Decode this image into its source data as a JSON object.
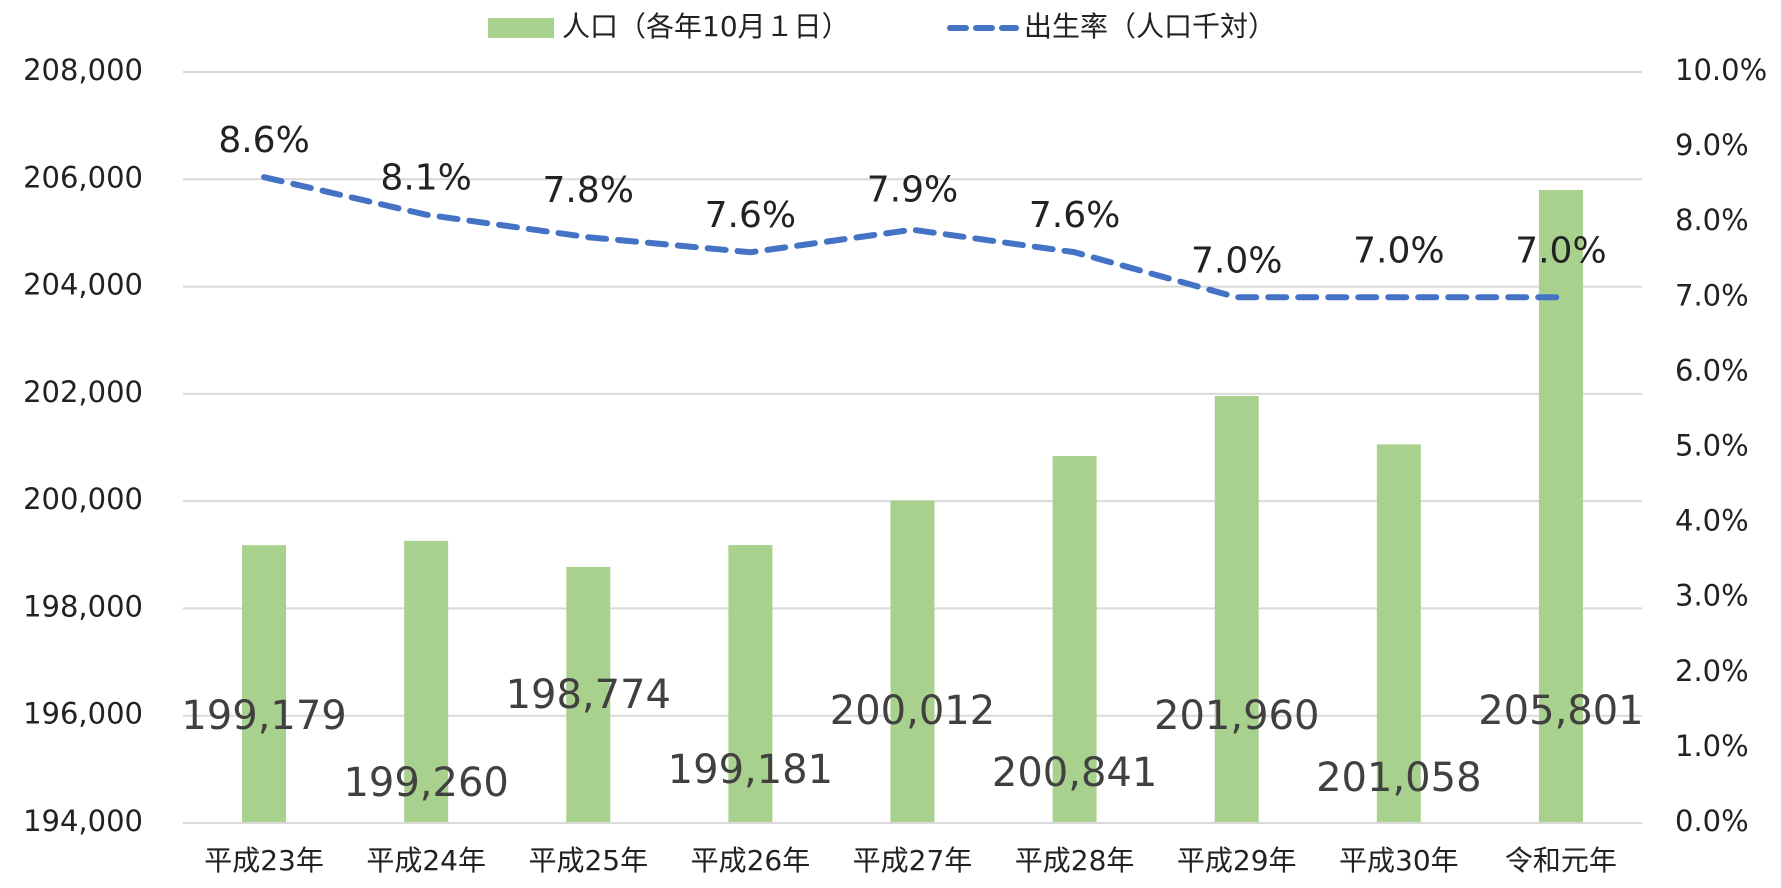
{
  "chart_data": {
    "type": "bar_line",
    "categories": [
      "平成23年",
      "平成24年",
      "平成25年",
      "平成26年",
      "平成27年",
      "平成28年",
      "平成29年",
      "平成30年",
      "令和元年"
    ],
    "series": [
      {
        "name": "人口（各年10月１日）",
        "type": "bar",
        "color": "#a9d18e",
        "values": [
          199179,
          199260,
          198774,
          199181,
          200012,
          200841,
          201960,
          201058,
          205801
        ],
        "value_labels": [
          "199,179",
          "199,260",
          "198,774",
          "199,181",
          "200,012",
          "200,841",
          "201,960",
          "201,058",
          "205,801"
        ]
      },
      {
        "name": "出生率（人口千対）",
        "type": "line",
        "axis": "y2",
        "color": "#4472c4",
        "dashed": true,
        "values": [
          8.6,
          8.1,
          7.8,
          7.6,
          7.9,
          7.6,
          7.0,
          7.0,
          7.0
        ],
        "value_labels": [
          "8.6%",
          "8.1%",
          "7.8%",
          "7.6%",
          "7.9%",
          "7.6%",
          "7.0%",
          "7.0%",
          "7.0%"
        ]
      }
    ],
    "ylim": [
      194000,
      208000
    ],
    "yticks": [
      {
        "value": 194000,
        "label": "194,000"
      },
      {
        "value": 196000,
        "label": "196,000"
      },
      {
        "value": 198000,
        "label": "198,000"
      },
      {
        "value": 200000,
        "label": "200,000"
      },
      {
        "value": 202000,
        "label": "202,000"
      },
      {
        "value": 204000,
        "label": "204,000"
      },
      {
        "value": 206000,
        "label": "206,000"
      },
      {
        "value": 208000,
        "label": "208,000"
      }
    ],
    "y2lim": [
      0,
      10
    ],
    "y2ticks": [
      {
        "value": 0,
        "label": "0.0%"
      },
      {
        "value": 1,
        "label": "1.0%"
      },
      {
        "value": 2,
        "label": "2.0%"
      },
      {
        "value": 3,
        "label": "3.0%"
      },
      {
        "value": 4,
        "label": "4.0%"
      },
      {
        "value": 5,
        "label": "5.0%"
      },
      {
        "value": 6,
        "label": "6.0%"
      },
      {
        "value": 7,
        "label": "7.0%"
      },
      {
        "value": 8,
        "label": "8.0%"
      },
      {
        "value": 9,
        "label": "9.0%"
      },
      {
        "value": 10,
        "label": "10.0%"
      }
    ],
    "grid": true,
    "legend": "top"
  }
}
